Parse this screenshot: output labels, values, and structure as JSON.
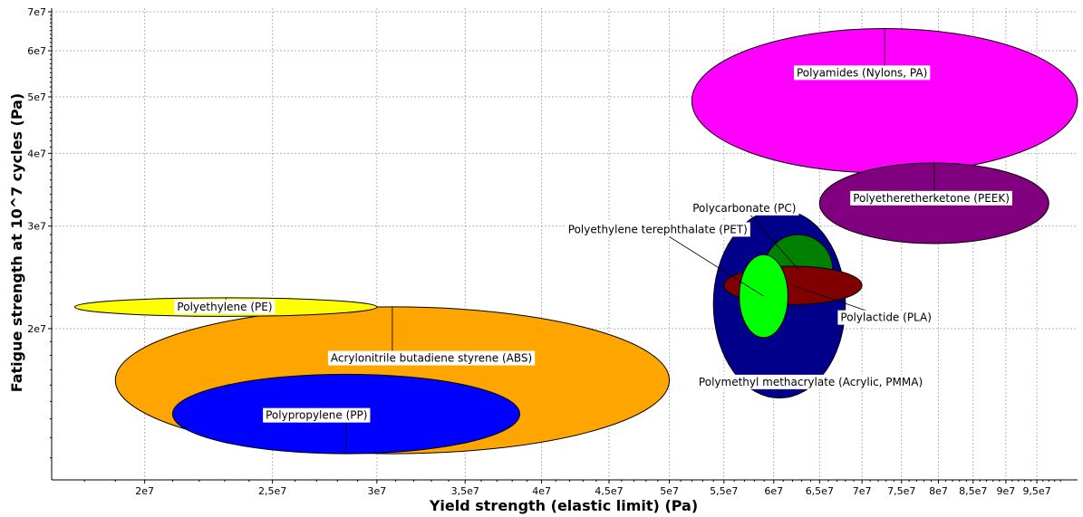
{
  "chart_data": {
    "type": "scatter",
    "subtype": "ashby-bubble",
    "xlabel": "Yield strength (elastic limit) (Pa)",
    "ylabel": "Fatigue strength at 10^7 cycles (Pa)",
    "xscale": "log",
    "yscale": "log",
    "xlim": [
      17000000,
      102000000
    ],
    "ylim": [
      11000000,
      71000000
    ],
    "grid": true,
    "xticks": [
      {
        "value": 20000000,
        "label": "2e7"
      },
      {
        "value": 25000000,
        "label": "2,5e7"
      },
      {
        "value": 30000000,
        "label": "3e7"
      },
      {
        "value": 35000000,
        "label": "3,5e7"
      },
      {
        "value": 40000000,
        "label": "4e7"
      },
      {
        "value": 45000000,
        "label": "4,5e7"
      },
      {
        "value": 50000000,
        "label": "5e7"
      },
      {
        "value": 55000000,
        "label": "5,5e7"
      },
      {
        "value": 60000000,
        "label": "6e7"
      },
      {
        "value": 65000000,
        "label": "6,5e7"
      },
      {
        "value": 70000000,
        "label": "7e7"
      },
      {
        "value": 75000000,
        "label": "7,5e7"
      },
      {
        "value": 80000000,
        "label": "8e7"
      },
      {
        "value": 85000000,
        "label": "8,5e7"
      },
      {
        "value": 90000000,
        "label": "9e7"
      },
      {
        "value": 95000000,
        "label": "9,5e7"
      }
    ],
    "yticks": [
      {
        "value": 20000000,
        "label": "2e7"
      },
      {
        "value": 30000000,
        "label": "3e7"
      },
      {
        "value": 40000000,
        "label": "4e7"
      },
      {
        "value": 50000000,
        "label": "5e7"
      },
      {
        "value": 60000000,
        "label": "6e7"
      },
      {
        "value": 70000000,
        "label": "7e7"
      }
    ],
    "materials": [
      {
        "name": "Polyamides (Nylons, PA)",
        "x_range": [
          52000000,
          102000000
        ],
        "y_range": [
          37000000,
          65500000
        ],
        "color": "#ff00ff",
        "label_at": [
          70000000,
          55000000
        ],
        "leader": "vertical"
      },
      {
        "name": "Polyetheretherketone (PEEK)",
        "x_range": [
          65000000,
          97000000
        ],
        "y_range": [
          28000000,
          38500000
        ],
        "color": "#800080",
        "label_at": [
          79000000,
          33500000
        ],
        "leader": "vertical"
      },
      {
        "name": "Acrylonitrile butadiene styrene (ABS)",
        "x_range": [
          19000000,
          50000000
        ],
        "y_range": [
          12200000,
          21800000
        ],
        "color": "#ffa500",
        "label_at": [
          33000000,
          17800000
        ],
        "leader": "vertical"
      },
      {
        "name": "Polypropylene (PP)",
        "x_range": [
          21000000,
          38500000
        ],
        "y_range": [
          12200000,
          16700000
        ],
        "color": "#0000ff",
        "label_at": [
          27000000,
          14200000
        ],
        "leader": "vertical"
      },
      {
        "name": "Polyethylene (PE)",
        "x_range": [
          17700000,
          30000000
        ],
        "y_range": [
          21000000,
          22600000
        ],
        "color": "#ffff00",
        "label_at": [
          23000000,
          21800000
        ],
        "leader": "vertical"
      },
      {
        "name": "Polymethyl methacrylate (Acrylic, PMMA)",
        "x_range": [
          54000000,
          68000000
        ],
        "y_range": [
          15200000,
          32000000
        ],
        "color": "#00008b",
        "label_at": [
          64000000,
          16200000
        ],
        "leader": "vertical"
      },
      {
        "name": "Polycarbonate (PC)",
        "x_range": [
          59000000,
          66500000
        ],
        "y_range": [
          22000000,
          29000000
        ],
        "color": "#008000",
        "label_at": [
          57000000,
          32200000
        ],
        "leader": "diagonal"
      },
      {
        "name": "Polylactide (PLA)",
        "x_range": [
          55000000,
          70000000
        ],
        "y_range": [
          22000000,
          25600000
        ],
        "color": "#800000",
        "label_at": [
          73000000,
          20900000
        ],
        "leader": "diagonal"
      },
      {
        "name": "Polyethylene terephthalate (PET)",
        "x_range": [
          56500000,
          61500000
        ],
        "y_range": [
          19300000,
          26800000
        ],
        "color": "#00ff00",
        "label_at": [
          49000000,
          29600000
        ],
        "leader": "diagonal"
      }
    ]
  }
}
